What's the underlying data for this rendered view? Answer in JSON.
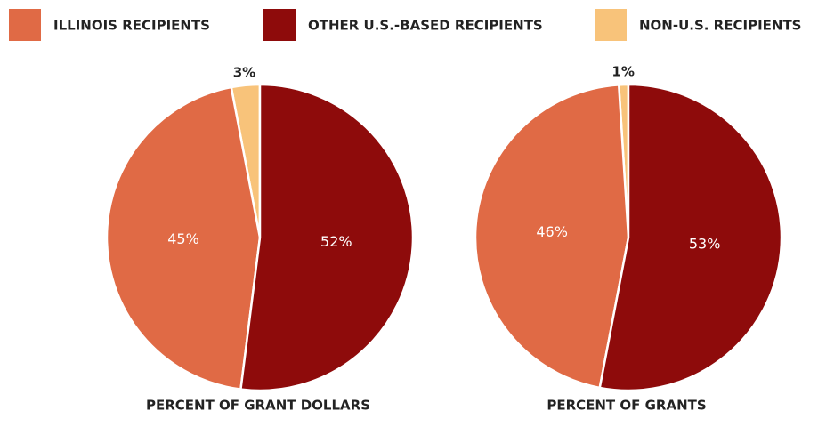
{
  "legend": [
    {
      "name": "ILLINOIS RECIPIENTS",
      "color": "#e06a45"
    },
    {
      "name": "OTHER U.S.-BASED RECIPIENTS",
      "color": "#8e0b0b"
    },
    {
      "name": "NON-U.S. RECIPIENTS",
      "color": "#f8c37a"
    }
  ],
  "chart_data": [
    {
      "type": "pie",
      "title": "PERCENT OF GRANT DOLLARS",
      "values": [
        45,
        52,
        3
      ],
      "value_labels": [
        "45%",
        "52%",
        "3%"
      ]
    },
    {
      "type": "pie",
      "title": "PERCENT OF GRANTS",
      "values": [
        46,
        53,
        1
      ],
      "value_labels": [
        "46%",
        "53%",
        "1%"
      ]
    }
  ]
}
